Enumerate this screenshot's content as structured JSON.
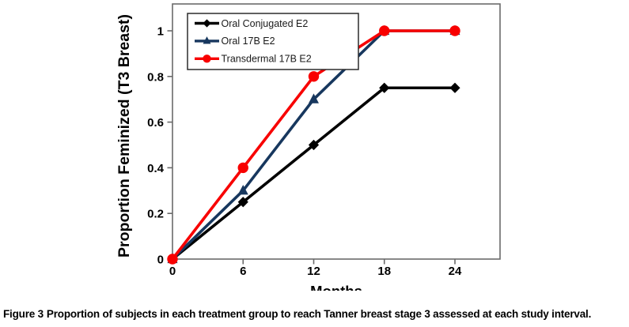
{
  "figure": {
    "caption_label": "Figure 3",
    "caption_text": "Proportion of subjects in each treatment group to reach Tanner breast stage 3 assessed at each study interval."
  },
  "chart_data": {
    "type": "line",
    "x": [
      0,
      6,
      12,
      18,
      24
    ],
    "xlabel": "Months",
    "ylabel": "Proportion Feminized (T3 Breast)",
    "xticks": [
      0,
      6,
      12,
      18,
      24
    ],
    "yticks": [
      0,
      0.2,
      0.4,
      0.6,
      0.8,
      1
    ],
    "xlim": [
      0,
      27.8
    ],
    "ylim": [
      0,
      1.12
    ],
    "grid": false,
    "legend_position": "top-left-inside",
    "axis_color": "#6a6a6a",
    "series": [
      {
        "name": "Oral Conjugated E2",
        "color": "#000000",
        "marker": "diamond",
        "values": [
          0,
          0.25,
          0.5,
          0.75,
          0.75
        ]
      },
      {
        "name": "Oral 17B E2",
        "color": "#17375E",
        "marker": "triangle",
        "values": [
          0,
          0.3,
          0.7,
          1,
          1
        ]
      },
      {
        "name": "Transdermal 17B E2",
        "color": "#F80000",
        "marker": "circle",
        "values": [
          0,
          0.4,
          0.8,
          1,
          1
        ]
      }
    ]
  }
}
